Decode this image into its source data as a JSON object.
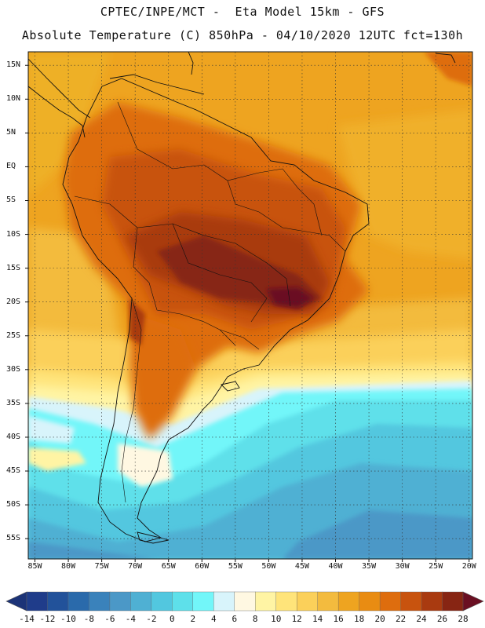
{
  "header": {
    "line1": "CPTEC/INPE/MCT -  Eta Model 15km - GFS",
    "line2": "Absolute Temperature (C) 850hPa - 04/10/2020 12UTC fct=130h"
  },
  "map": {
    "lat_labels": [
      "15N",
      "10N",
      "5N",
      "EQ",
      "5S",
      "10S",
      "15S",
      "20S",
      "25S",
      "30S",
      "35S",
      "40S",
      "45S",
      "50S",
      "55S"
    ],
    "lat_values": [
      15,
      10,
      5,
      0,
      -5,
      -10,
      -15,
      -20,
      -25,
      -30,
      -35,
      -40,
      -45,
      -50,
      -55
    ],
    "lon_labels": [
      "85W",
      "80W",
      "75W",
      "70W",
      "65W",
      "60W",
      "55W",
      "50W",
      "45W",
      "40W",
      "35W",
      "30W",
      "25W",
      "20W"
    ],
    "lon_values": [
      -85,
      -80,
      -75,
      -70,
      -65,
      -60,
      -55,
      -50,
      -45,
      -40,
      -35,
      -30,
      -25,
      -20
    ],
    "extent": {
      "lon_min": -86,
      "lon_max": -19.5,
      "lat_min": -58,
      "lat_max": 17
    }
  },
  "colorbar": {
    "labels": [
      "-14",
      "-12",
      "-10",
      "-8",
      "-6",
      "-4",
      "-2",
      "0",
      "2",
      "4",
      "6",
      "8",
      "10",
      "12",
      "14",
      "16",
      "18",
      "20",
      "22",
      "24",
      "26",
      "28"
    ],
    "colors": [
      "#1f3c8a",
      "#22529a",
      "#2a6aab",
      "#3a82bb",
      "#4b98c7",
      "#4fb0d3",
      "#52c7df",
      "#5ee0ea",
      "#72f6f9",
      "#d8f4fb",
      "#fff8e2",
      "#fff4a4",
      "#ffe47a",
      "#fbd05a",
      "#f3bb3e",
      "#eea420",
      "#e98c12",
      "#de6d0e",
      "#c8530e",
      "#a93a10",
      "#872513"
    ],
    "under_color": "#1c3377",
    "over_color": "#6a0f22"
  }
}
